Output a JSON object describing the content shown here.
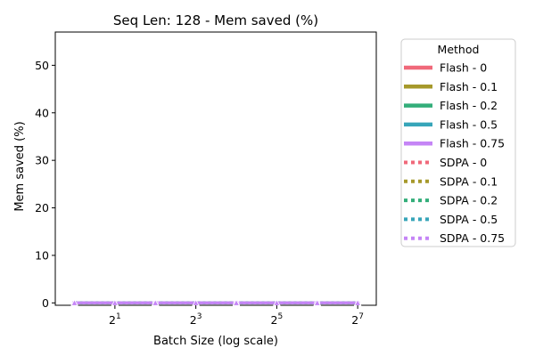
{
  "chart_data": {
    "type": "line",
    "title": "Seq Len: 128 -  Mem saved (%)",
    "xlabel": "Batch Size (log scale)",
    "ylabel": "Mem saved (%)",
    "xscale": "log2",
    "x": [
      1,
      2,
      4,
      8,
      16,
      32,
      64,
      128
    ],
    "xlim": [
      0.72,
      176
    ],
    "ylim": [
      -0.5,
      57
    ],
    "xticks": [
      {
        "value": 2,
        "base": "2",
        "exp": "1"
      },
      {
        "value": 8,
        "base": "2",
        "exp": "3"
      },
      {
        "value": 32,
        "base": "2",
        "exp": "5"
      },
      {
        "value": 128,
        "base": "2",
        "exp": "7"
      }
    ],
    "yticks": [
      0,
      10,
      20,
      30,
      40,
      50
    ],
    "grid": false,
    "legend": {
      "title": "Method",
      "placement": "outside-right"
    },
    "series": [
      {
        "name": "Flash - 0",
        "style": "solid",
        "color": "#f0697a",
        "values": [
          0,
          0,
          0,
          0,
          0,
          0,
          0,
          0
        ]
      },
      {
        "name": "Flash - 0.1",
        "style": "solid",
        "color": "#a6992b",
        "values": [
          0,
          0,
          0,
          0,
          0,
          0,
          0,
          0
        ]
      },
      {
        "name": "Flash - 0.2",
        "style": "solid",
        "color": "#33ae7a",
        "values": [
          0,
          0,
          0,
          0,
          0,
          0,
          0,
          0
        ]
      },
      {
        "name": "Flash - 0.5",
        "style": "solid",
        "color": "#37a5b9",
        "values": [
          0,
          0,
          0,
          0,
          0,
          0,
          0,
          0
        ]
      },
      {
        "name": "Flash - 0.75",
        "style": "solid",
        "color": "#c585f6",
        "values": [
          0,
          0,
          0,
          0,
          0,
          0,
          0,
          0
        ]
      },
      {
        "name": "SDPA - 0",
        "style": "dotted",
        "color": "#f0697a",
        "values": [
          0,
          0,
          0,
          0,
          0,
          0,
          0,
          0
        ]
      },
      {
        "name": "SDPA - 0.1",
        "style": "dotted",
        "color": "#a6992b",
        "values": [
          0,
          0,
          0,
          0,
          0,
          0,
          0,
          0
        ]
      },
      {
        "name": "SDPA - 0.2",
        "style": "dotted",
        "color": "#33ae7a",
        "values": [
          0,
          0,
          0,
          0,
          0,
          0,
          0,
          0
        ]
      },
      {
        "name": "SDPA - 0.5",
        "style": "dotted",
        "color": "#37a5b9",
        "values": [
          0,
          0,
          0,
          0,
          0,
          0,
          0,
          0
        ]
      },
      {
        "name": "SDPA - 0.75",
        "style": "dotted",
        "color": "#c585f6",
        "values": [
          0,
          0,
          0,
          0,
          0,
          0,
          0,
          0
        ]
      }
    ]
  }
}
